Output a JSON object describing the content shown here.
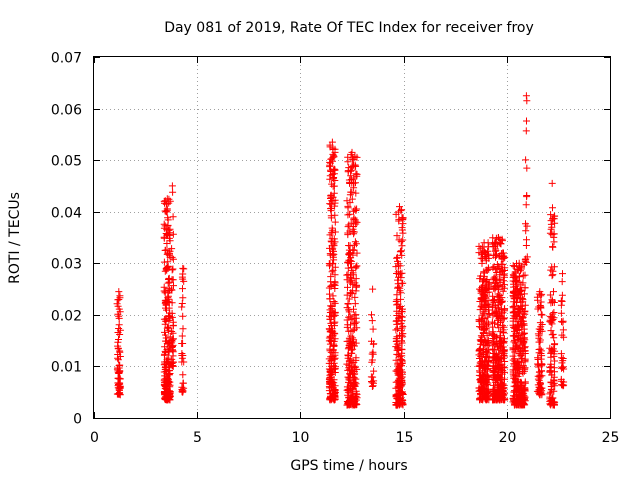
{
  "chart_data": {
    "type": "scatter",
    "title": "Day 081 of 2019, Rate Of TEC Index for receiver froy",
    "xlabel": "GPS time / hours",
    "ylabel": "ROTI / TECUs",
    "xlim": [
      0,
      25
    ],
    "ylim": [
      0,
      0.07
    ],
    "xticks": [
      0,
      5,
      10,
      15,
      20,
      25
    ],
    "xtick_labels": [
      "0",
      "5",
      "10",
      "15",
      "20",
      "25"
    ],
    "yticks": [
      0,
      0.01,
      0.02,
      0.03,
      0.04,
      0.05,
      0.06,
      0.07
    ],
    "ytick_labels": [
      "0",
      "0.01",
      "0.02",
      "0.03",
      "0.04",
      "0.05",
      "0.06",
      "0.07"
    ],
    "grid": true,
    "marker": "+",
    "color": "#ff0000",
    "clusters": [
      {
        "x_center": 1.2,
        "x_spread": 0.08,
        "y_min": 0.0045,
        "y_max": 0.0245,
        "count": 70
      },
      {
        "x_center": 3.55,
        "x_spread": 0.15,
        "y_min": 0.0035,
        "y_max": 0.0425,
        "count": 230
      },
      {
        "x_center": 3.8,
        "x_spread": 0.05,
        "y_min": 0.01,
        "y_max": 0.045,
        "count": 40
      },
      {
        "x_center": 4.3,
        "x_spread": 0.05,
        "y_min": 0.005,
        "y_max": 0.029,
        "count": 30
      },
      {
        "x_center": 11.55,
        "x_spread": 0.15,
        "y_min": 0.0035,
        "y_max": 0.0535,
        "count": 260
      },
      {
        "x_center": 12.5,
        "x_spread": 0.25,
        "y_min": 0.0025,
        "y_max": 0.0515,
        "count": 300
      },
      {
        "x_center": 13.5,
        "x_spread": 0.06,
        "y_min": 0.006,
        "y_max": 0.025,
        "count": 20
      },
      {
        "x_center": 14.8,
        "x_spread": 0.18,
        "y_min": 0.0025,
        "y_max": 0.041,
        "count": 220
      },
      {
        "x_center": 18.9,
        "x_spread": 0.25,
        "y_min": 0.0035,
        "y_max": 0.034,
        "count": 300
      },
      {
        "x_center": 19.6,
        "x_spread": 0.3,
        "y_min": 0.0035,
        "y_max": 0.035,
        "count": 360
      },
      {
        "x_center": 20.6,
        "x_spread": 0.3,
        "y_min": 0.0025,
        "y_max": 0.03,
        "count": 380
      },
      {
        "x_center": 20.95,
        "x_spread": 0.06,
        "y_min": 0.03,
        "y_max": 0.0625,
        "count": 18
      },
      {
        "x_center": 21.6,
        "x_spread": 0.12,
        "y_min": 0.0045,
        "y_max": 0.0245,
        "count": 80
      },
      {
        "x_center": 22.2,
        "x_spread": 0.12,
        "y_min": 0.0025,
        "y_max": 0.0455,
        "count": 110
      },
      {
        "x_center": 22.7,
        "x_spread": 0.06,
        "y_min": 0.006,
        "y_max": 0.028,
        "count": 30
      }
    ]
  }
}
